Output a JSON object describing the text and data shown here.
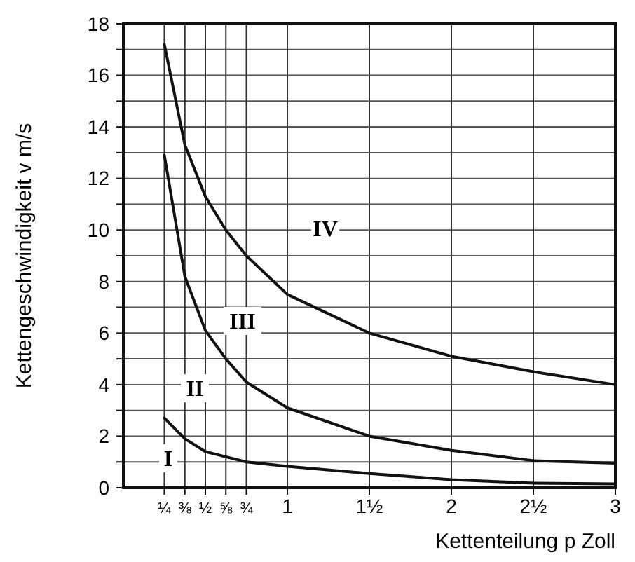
{
  "chart_data": {
    "type": "line",
    "xlabel": "Kettenteilung p Zoll",
    "ylabel": "Kettengeschwindigkeit v m/s",
    "x": [
      0.25,
      0.375,
      0.5,
      0.625,
      0.75,
      1,
      1.5,
      2,
      2.5,
      3
    ],
    "series": [
      {
        "color": "#111111",
        "values": [
          2.7,
          1.9,
          1.4,
          1.2,
          1.0,
          0.83,
          0.55,
          0.31,
          0.18,
          0.15
        ]
      },
      {
        "color": "#111111",
        "values": [
          12.9,
          8.2,
          6.1,
          5.0,
          4.1,
          3.1,
          2.0,
          1.45,
          1.05,
          0.95
        ]
      },
      {
        "color": "#111111",
        "values": [
          17.2,
          13.3,
          11.3,
          10.0,
          9.0,
          7.5,
          6.0,
          5.1,
          4.5,
          4.0
        ]
      }
    ],
    "xlim": [
      0,
      3
    ],
    "xticks": [
      {
        "value": 0.25,
        "label": "¼"
      },
      {
        "value": 0.375,
        "label": "⅜"
      },
      {
        "value": 0.5,
        "label": "½"
      },
      {
        "value": 0.625,
        "label": "⅝"
      },
      {
        "value": 0.75,
        "label": "¾"
      },
      1,
      {
        "value": 1.5,
        "label": "1½"
      },
      2,
      {
        "value": 2.5,
        "label": "2½"
      },
      3
    ],
    "ylim": [
      0,
      18
    ],
    "yticks": [
      0,
      {
        "value": 1,
        "label": null
      },
      2,
      {
        "value": 3,
        "label": null
      },
      4,
      {
        "value": 5,
        "label": null
      },
      6,
      {
        "value": 7,
        "label": null
      },
      8,
      {
        "value": 9,
        "label": null
      },
      10,
      {
        "value": 11,
        "label": null
      },
      12,
      {
        "value": 13,
        "label": null
      },
      14,
      {
        "value": 15,
        "label": null
      },
      16,
      {
        "value": 17,
        "label": null
      },
      18
    ],
    "grid": true,
    "marker": "none",
    "line_style": "solid",
    "annotations": [
      "I",
      "II",
      "III",
      "IV"
    ]
  }
}
